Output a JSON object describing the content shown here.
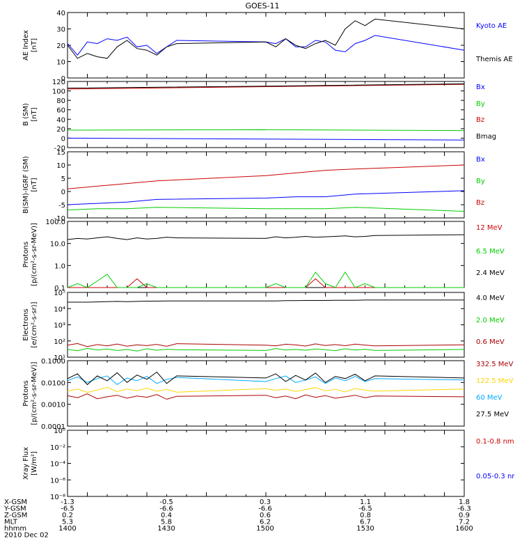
{
  "title": "GOES-11",
  "colors": {
    "black": "#000000",
    "blue": "#0000ff",
    "green": "#00cc00",
    "red": "#cc0000",
    "darkred": "#aa0000",
    "cyan": "#00a8ff",
    "yellow": "#ffd400"
  },
  "orbit": {
    "rows": [
      {
        "label": "X-GSM",
        "values": [
          "-1.3",
          "-0.5",
          "0.3",
          "1.1",
          "1.8"
        ]
      },
      {
        "label": "Y-GSM",
        "values": [
          "-6.5",
          "-6.6",
          "-6.6",
          "-6.5",
          "-6.3"
        ]
      },
      {
        "label": "Z-GSM",
        "values": [
          "0.2",
          "0.4",
          "0.6",
          "0.8",
          "0.9"
        ]
      },
      {
        "label": "MLT",
        "values": [
          "5.3",
          "5.8",
          "6.2",
          "6.7",
          "7.2"
        ]
      },
      {
        "label": "hhmm",
        "values": [
          "1400",
          "1430",
          "1500",
          "1530",
          "1600"
        ]
      }
    ],
    "date": "2010 Dec 02"
  },
  "chart_data": [
    {
      "type": "line",
      "ylabel": "AE Index",
      "unit": "[nT]",
      "ylim": [
        0,
        40
      ],
      "yticks": [
        "0",
        "10",
        "20",
        "30",
        "40"
      ],
      "x": [
        1400,
        1405,
        1410,
        1415,
        1420,
        1425,
        1430,
        1435,
        1440,
        1445,
        1450,
        1455,
        1500,
        1505,
        1510,
        1515,
        1520,
        1525,
        1530,
        1535,
        1540,
        1545,
        1550,
        1555,
        1600
      ],
      "series": [
        {
          "name": "Kyoto AE",
          "color": "#0000ff",
          "values": [
            21,
            14,
            22,
            21,
            24,
            23,
            25,
            19,
            20,
            15,
            19,
            23,
            22,
            21,
            24,
            19,
            19,
            23,
            22,
            17,
            16,
            21,
            23,
            26,
            17
          ]
        },
        {
          "name": "Themis AE",
          "color": "#000000",
          "values": [
            20,
            12,
            15,
            13,
            12,
            19,
            23,
            18,
            17,
            14,
            19,
            21,
            22,
            19,
            24,
            20,
            18,
            21,
            23,
            20,
            30,
            35,
            32,
            36,
            30
          ]
        }
      ]
    },
    {
      "type": "line",
      "ylabel": "B (SM)",
      "unit": "[nT]",
      "ylim": [
        -20,
        120
      ],
      "yticks": [
        "-20",
        "0",
        "20",
        "40",
        "60",
        "80",
        "100",
        "120"
      ],
      "x": [
        1400,
        1500,
        1600
      ],
      "series": [
        {
          "name": "Bx",
          "color": "#0000ff",
          "values": [
            0,
            -2,
            -4
          ]
        },
        {
          "name": "By",
          "color": "#00cc00",
          "values": [
            17,
            18,
            16
          ]
        },
        {
          "name": "Bz",
          "color": "#cc0000",
          "values": [
            104,
            109,
            114
          ]
        },
        {
          "name": "Bmag",
          "color": "#000000",
          "values": [
            106,
            110,
            115
          ]
        }
      ]
    },
    {
      "type": "line",
      "ylabel": "B(SM)-IGRF (SM)",
      "unit": "[nT]",
      "ylim": [
        -10,
        15
      ],
      "yticks": [
        "-10",
        "-5",
        "0",
        "5",
        "10",
        "15"
      ],
      "x": [
        1400,
        1415,
        1430,
        1445,
        1500,
        1515,
        1530,
        1545,
        1600
      ],
      "series": [
        {
          "name": "Bx",
          "color": "#0000ff",
          "values": [
            -5,
            -4.5,
            -4,
            -3,
            -2.5,
            -2,
            -2,
            -1,
            0.3
          ]
        },
        {
          "name": "By",
          "color": "#00cc00",
          "values": [
            -7,
            -6.5,
            -6.5,
            -6,
            -6.5,
            -6.5,
            -6.5,
            -6,
            -7.5
          ]
        },
        {
          "name": "Bz",
          "color": "#cc0000",
          "values": [
            1,
            2,
            3,
            4,
            6,
            7,
            8,
            8.5,
            10
          ]
        }
      ]
    },
    {
      "type": "line",
      "ylabel": "Protons",
      "unit": "[p/(cm²-s-sr-MeV)]",
      "log": true,
      "ylim": [
        0.1,
        100.0
      ],
      "yticks": [
        "0.1",
        "1.0",
        "10.0",
        "100.0"
      ],
      "x": [
        1400,
        1405,
        1410,
        1415,
        1420,
        1425,
        1430,
        1435,
        1440,
        1445,
        1450,
        1455,
        1500,
        1505,
        1510,
        1515,
        1520,
        1525,
        1530,
        1535,
        1540,
        1545,
        1550,
        1555,
        1600
      ],
      "series": [
        {
          "name": "12 MeV",
          "color": "#cc0000",
          "values": [
            0.1,
            0.1,
            0.1,
            0.1,
            0.1,
            0.1,
            0.1,
            0.25,
            0.1,
            0.1,
            0.1,
            0.1,
            0.1,
            0.1,
            0.1,
            0.1,
            0.1,
            0.25,
            0.1,
            0.1,
            0.1,
            0.1,
            0.1,
            0.1,
            0.1
          ]
        },
        {
          "name": "6.5 MeV",
          "color": "#00cc00",
          "values": [
            0.1,
            0.15,
            0.1,
            0.2,
            0.4,
            0.1,
            0.1,
            0.1,
            0.15,
            0.1,
            0.1,
            0.1,
            0.1,
            0.15,
            0.1,
            0.1,
            0.1,
            0.5,
            0.15,
            0.1,
            0.5,
            0.1,
            0.15,
            0.1,
            0.1
          ]
        },
        {
          "name": "2.4 MeV",
          "color": "#000000",
          "values": [
            15,
            17,
            16,
            18,
            20,
            17,
            15,
            18,
            16,
            17,
            19,
            18,
            17,
            20,
            18,
            19,
            21,
            19,
            20,
            21,
            22,
            20,
            21,
            23,
            25
          ]
        }
      ]
    },
    {
      "type": "line",
      "ylabel": "Electrons",
      "unit": "[e/(cm²-s-sr)]",
      "log": true,
      "ylim": [
        10,
        100000
      ],
      "yticks": [
        "10¹",
        "10²",
        "10³",
        "10⁴",
        "10⁵"
      ],
      "x": [
        1400,
        1405,
        1410,
        1415,
        1420,
        1425,
        1430,
        1435,
        1440,
        1445,
        1450,
        1455,
        1500,
        1505,
        1510,
        1515,
        1520,
        1525,
        1530,
        1535,
        1540,
        1545,
        1550,
        1555,
        1600
      ],
      "series": [
        {
          "name": "4.0 MeV",
          "color": "#000000",
          "values": [
            25000,
            25000,
            25000,
            26000,
            27000,
            28000,
            27000,
            28000,
            29000,
            29000,
            30000,
            30000,
            30000,
            30000,
            31000,
            31000,
            32000,
            32000,
            32000,
            33000,
            33000,
            33000,
            34000,
            34000,
            34000
          ]
        },
        {
          "name": "2.0 MeV",
          "color": "#00cc00",
          "values": [
            30,
            25,
            35,
            28,
            32,
            26,
            30,
            24,
            33,
            27,
            31,
            29,
            26,
            34,
            28,
            30,
            27,
            32,
            29,
            25,
            33,
            28,
            31,
            26,
            30
          ]
        },
        {
          "name": "0.6 MeV",
          "color": "#aa0000",
          "values": [
            55,
            70,
            45,
            60,
            50,
            65,
            48,
            58,
            52,
            62,
            47,
            68,
            55,
            50,
            63,
            57,
            49,
            66,
            53,
            60,
            51,
            64,
            56,
            50,
            58
          ]
        }
      ]
    },
    {
      "type": "line",
      "ylabel": "Protons",
      "unit": "[p/(cm²-s-sr-MeV)]",
      "log": true,
      "ylim": [
        0.0001,
        0.1
      ],
      "yticks": [
        "0.0001",
        "0.0010",
        "0.0100",
        "0.1000"
      ],
      "x": [
        1400,
        1405,
        1410,
        1415,
        1420,
        1425,
        1430,
        1435,
        1440,
        1445,
        1450,
        1455,
        1500,
        1505,
        1510,
        1515,
        1520,
        1525,
        1530,
        1535,
        1540,
        1545,
        1550,
        1555,
        1600
      ],
      "series": [
        {
          "name": "332.5 MeV",
          "color": "#aa0000",
          "values": [
            0.0025,
            0.002,
            0.003,
            0.0018,
            0.0022,
            0.0026,
            0.0019,
            0.0024,
            0.0021,
            0.0028,
            0.0017,
            0.0023,
            0.0026,
            0.002,
            0.0024,
            0.0018,
            0.0027,
            0.0021,
            0.0025,
            0.0019,
            0.0022,
            0.0026,
            0.002,
            0.0024,
            0.0022
          ]
        },
        {
          "name": "122.5 MeV",
          "color": "#ffd400",
          "values": [
            0.004,
            0.005,
            0.0035,
            0.0045,
            0.006,
            0.0038,
            0.005,
            0.0042,
            0.0055,
            0.004,
            0.0048,
            0.0036,
            0.0052,
            0.0044,
            0.005,
            0.0039,
            0.0047,
            0.0058,
            0.0041,
            0.0049,
            0.0037,
            0.0053,
            0.0045,
            0.004,
            0.005
          ]
        },
        {
          "name": "60 MeV",
          "color": "#00a8ff",
          "values": [
            0.012,
            0.018,
            0.01,
            0.015,
            0.02,
            0.008,
            0.016,
            0.012,
            0.019,
            0.009,
            0.014,
            0.017,
            0.011,
            0.015,
            0.02,
            0.01,
            0.013,
            0.018,
            0.009,
            0.016,
            0.012,
            0.019,
            0.011,
            0.015,
            0.013
          ]
        },
        {
          "name": "27.5 MeV",
          "color": "#000000",
          "values": [
            0.015,
            0.025,
            0.008,
            0.02,
            0.012,
            0.028,
            0.01,
            0.022,
            0.014,
            0.03,
            0.009,
            0.02,
            0.016,
            0.025,
            0.011,
            0.021,
            0.013,
            0.027,
            0.01,
            0.019,
            0.015,
            0.024,
            0.012,
            0.02,
            0.016
          ]
        }
      ]
    },
    {
      "type": "line",
      "ylabel": "Xray Flux",
      "unit": "[W/m²]",
      "log": true,
      "ylim": [
        1e-09,
        1
      ],
      "yticks": [
        "10⁻⁸",
        "10⁻⁶",
        "10⁻⁴",
        "10⁻²",
        "10⁰"
      ],
      "x": [],
      "series": [
        {
          "name": "0.1-0.8 nm",
          "color": "#cc0000",
          "values": []
        },
        {
          "name": "0.05-0.3 nr",
          "color": "#0000ff",
          "values": []
        }
      ]
    }
  ]
}
